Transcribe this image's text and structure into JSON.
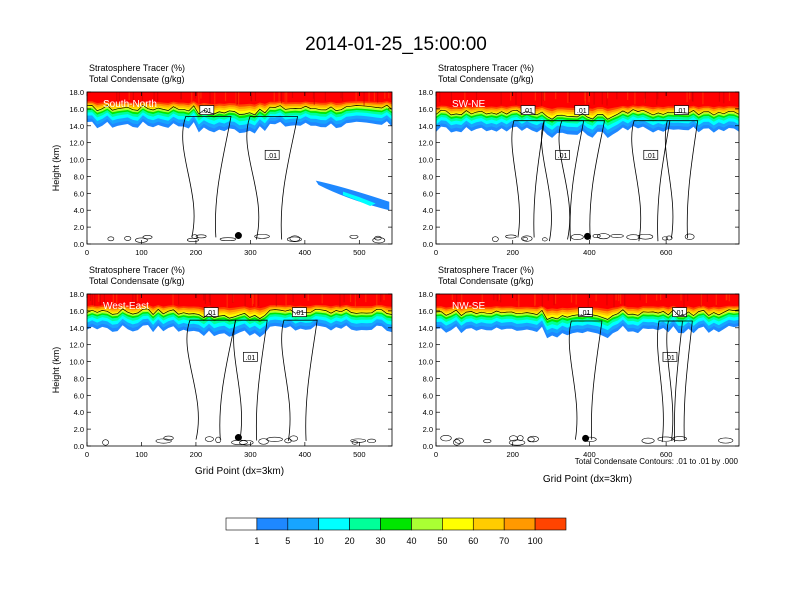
{
  "figure": {
    "title": "2014-01-25_15:00:00",
    "contour_note": "Total Condensate Contours: .01 to .01 by .000",
    "colorbar_levels": [
      "1",
      "5",
      "10",
      "20",
      "30",
      "40",
      "50",
      "60",
      "70",
      "100"
    ],
    "colorbar_colors": [
      "#ffffff",
      "#1e88ff",
      "#17a5ff",
      "#00ffff",
      "#00ff99",
      "#00e600",
      "#aaff33",
      "#ffff00",
      "#ffcc00",
      "#ff9900",
      "#ff4400",
      "#ff0000"
    ],
    "contour_label": ".01"
  },
  "chart_data": [
    {
      "type": "heatmap",
      "panel_label": "South-North",
      "left_title_1": "Stratosphere Tracer   (%)",
      "left_title_2": "Total Condensate   (g/kg)",
      "ylabel": "Height (km)",
      "xlabel": "",
      "ylim": [
        0,
        18
      ],
      "yticks": [
        "0.0",
        "2.0",
        "4.0",
        "6.0",
        "8.0",
        "10.0",
        "12.0",
        "14.0",
        "16.0",
        "18.0"
      ],
      "xlim": [
        0,
        560
      ],
      "xticks": [
        0,
        100,
        200,
        300,
        400,
        500
      ],
      "tracer_layer_bottom_km": 14.5,
      "marker": {
        "x": 278,
        "y_km": 1.0
      },
      "contour_label_x": [
        220,
        340
      ]
    },
    {
      "type": "heatmap",
      "panel_label": "SW-NE",
      "left_title_1": "Stratosphere Tracer   (%)",
      "left_title_2": "Total Condensate   (g/kg)",
      "ylabel": "",
      "xlabel": "",
      "ylim": [
        0,
        18
      ],
      "yticks": [
        "0.0",
        "2.0",
        "4.0",
        "6.0",
        "8.0",
        "10.0",
        "12.0",
        "14.0",
        "16.0",
        "18.0"
      ],
      "xlim": [
        0,
        790
      ],
      "xticks": [
        0,
        200,
        400,
        600
      ],
      "tracer_layer_bottom_km": 14.0,
      "marker": {
        "x": 395,
        "y_km": 0.9
      },
      "contour_label_x": [
        240,
        330,
        380,
        560,
        640
      ]
    },
    {
      "type": "heatmap",
      "panel_label": "West-East",
      "left_title_1": "Stratosphere Tracer   (%)",
      "left_title_2": "Total Condensate   (g/kg)",
      "ylabel": "Height (km)",
      "xlabel": "Grid Point (dx=3km)",
      "ylim": [
        0,
        18
      ],
      "yticks": [
        "0.0",
        "2.0",
        "4.0",
        "6.0",
        "8.0",
        "10.0",
        "12.0",
        "14.0",
        "16.0",
        "18.0"
      ],
      "xlim": [
        0,
        560
      ],
      "xticks": [
        0,
        100,
        200,
        300,
        400,
        500
      ],
      "tracer_layer_bottom_km": 14.3,
      "marker": {
        "x": 278,
        "y_km": 1.0
      },
      "contour_label_x": [
        228,
        300,
        390
      ]
    },
    {
      "type": "heatmap",
      "panel_label": "NW-SE",
      "left_title_1": "Stratosphere Tracer   (%)",
      "left_title_2": "Total Condensate   (g/kg)",
      "ylabel": "",
      "xlabel": "Grid Point (dx=3km)",
      "ylim": [
        0,
        18
      ],
      "yticks": [
        "0.0",
        "2.0",
        "4.0",
        "6.0",
        "8.0",
        "10.0",
        "12.0",
        "14.0",
        "16.0",
        "18.0"
      ],
      "xlim": [
        0,
        790
      ],
      "xticks": [
        0,
        200,
        400,
        600
      ],
      "tracer_layer_bottom_km": 14.2,
      "marker": {
        "x": 390,
        "y_km": 0.9
      },
      "contour_label_x": [
        390,
        610,
        635
      ]
    }
  ]
}
